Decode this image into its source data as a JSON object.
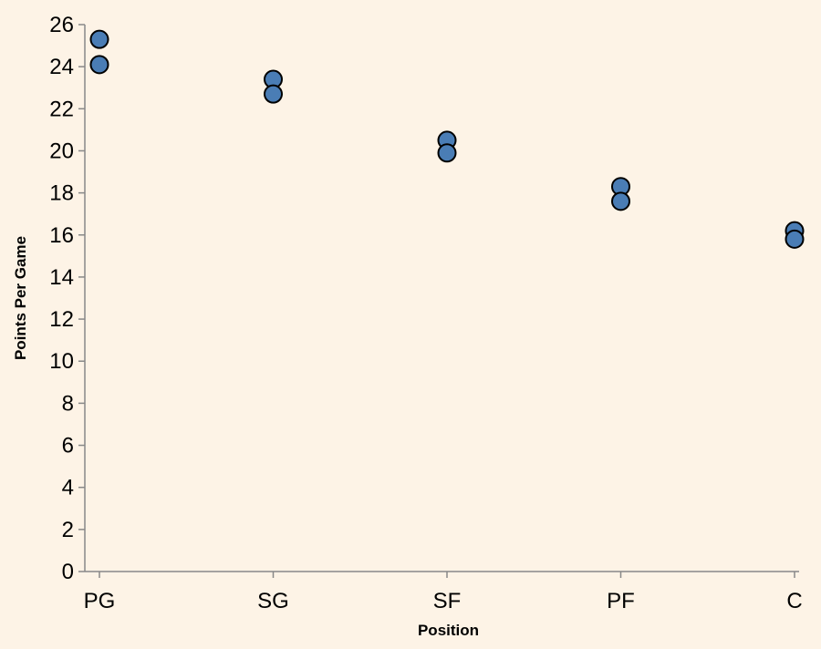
{
  "chart_data": {
    "type": "scatter",
    "title": "",
    "xlabel": "Position",
    "ylabel": "Points Per Game",
    "categories": [
      "PG",
      "SG",
      "SF",
      "PF",
      "C"
    ],
    "ylim": [
      0,
      26
    ],
    "yticks": [
      0,
      2,
      4,
      6,
      8,
      10,
      12,
      14,
      16,
      18,
      20,
      22,
      24,
      26
    ],
    "grid": false,
    "series": [
      {
        "name": "Points Per Game",
        "color": "#4a7db5",
        "points": [
          {
            "x": "PG",
            "y": 25.3
          },
          {
            "x": "PG",
            "y": 24.1
          },
          {
            "x": "SG",
            "y": 23.4
          },
          {
            "x": "SG",
            "y": 22.7
          },
          {
            "x": "SF",
            "y": 20.5
          },
          {
            "x": "SF",
            "y": 19.9
          },
          {
            "x": "PF",
            "y": 18.3
          },
          {
            "x": "PF",
            "y": 17.6
          },
          {
            "x": "C",
            "y": 16.2
          },
          {
            "x": "C",
            "y": 15.8
          }
        ]
      }
    ]
  }
}
